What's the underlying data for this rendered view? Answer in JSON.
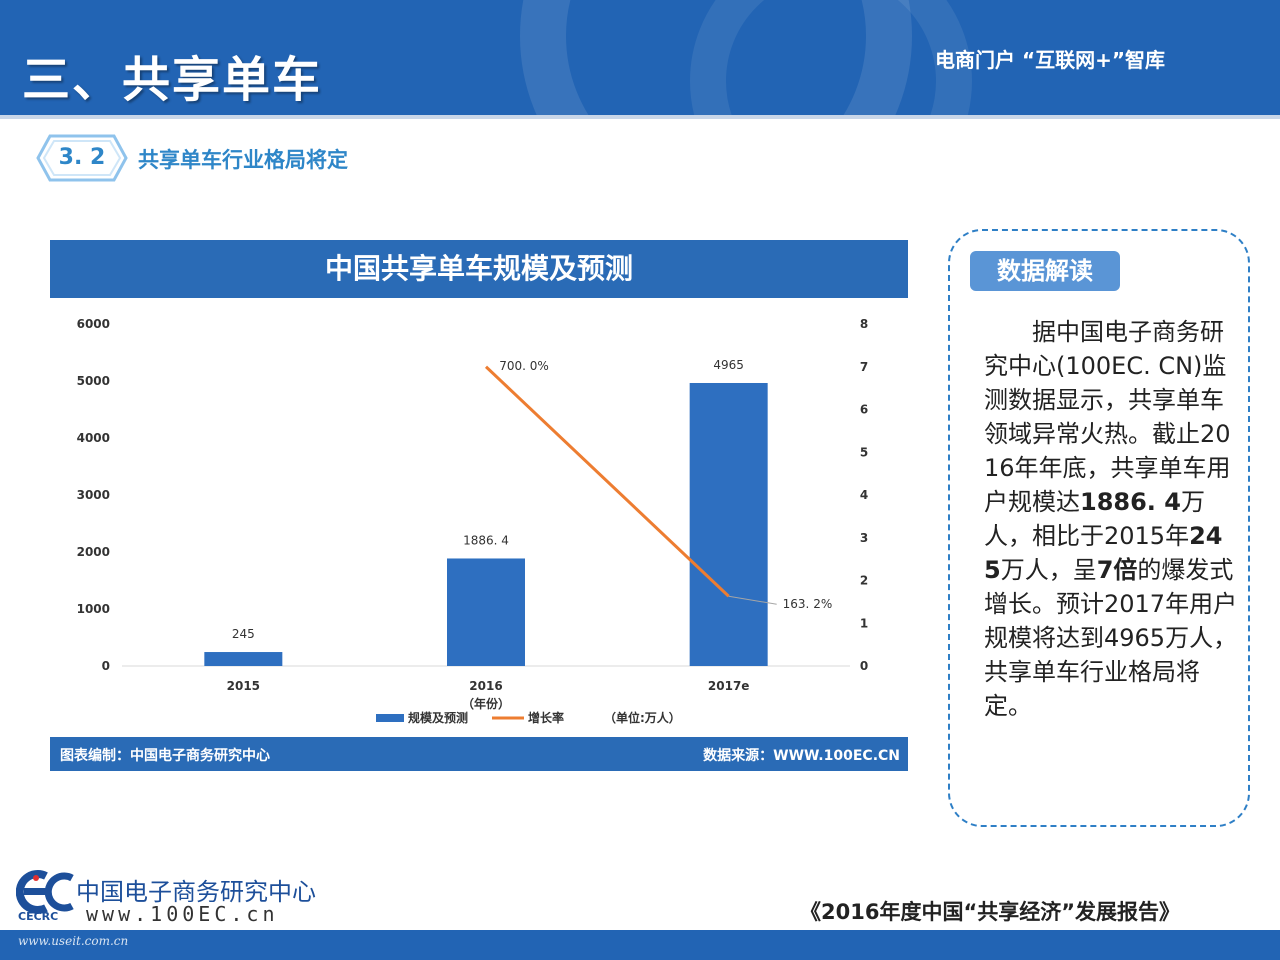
{
  "header": {
    "title": "三、共享单车",
    "portal": "电商门户 “互联网+”智库"
  },
  "section": {
    "number": "3. 2",
    "label": "共享单车行业格局将定"
  },
  "chart_panel": {
    "title": "中国共享单车规模及预测",
    "footer_left": "图表编制：中国电子商务研究中心",
    "footer_right": "数据来源：WWW.100EC.CN",
    "legend_unit": "（单位:万人）"
  },
  "chart_data": {
    "type": "bar",
    "title": "中国共享单车规模及预测",
    "xlabel": "（年份）",
    "categories": [
      "2015",
      "2016",
      "2017e"
    ],
    "series": [
      {
        "name": "规模及预测",
        "type": "bar",
        "axis": "left",
        "values": [
          245,
          1886.4,
          4965
        ],
        "labels": [
          "245",
          "1886. 4",
          "4965"
        ],
        "color": "#2e6fc0"
      },
      {
        "name": "增长率",
        "type": "line",
        "axis": "right",
        "values": [
          null,
          7.0,
          1.632
        ],
        "labels": [
          "",
          "700. 0%",
          "163. 2%"
        ],
        "color": "#ed7d31"
      }
    ],
    "ylim_left": [
      0,
      6000
    ],
    "yticks_left": [
      "0",
      "1000",
      "2000",
      "3000",
      "4000",
      "5000",
      "6000"
    ],
    "ylim_right": [
      0,
      8
    ],
    "yticks_right": [
      "0",
      "1",
      "2",
      "3",
      "4",
      "5",
      "6",
      "7",
      "8"
    ],
    "grid": false,
    "legend_position": "bottom"
  },
  "readout": {
    "badge": "数据解读",
    "paragraph": [
      {
        "text": "　　据中国电子商务研究中心(100EC. CN)监测数据显示，共享单车领域异常火热。截止2016年年底，共享单车用户规模达",
        "bold": false
      },
      {
        "text": "1886. 4",
        "bold": true
      },
      {
        "text": "万人，相比于2015年",
        "bold": false
      },
      {
        "text": "245",
        "bold": true
      },
      {
        "text": "万人，呈",
        "bold": false
      },
      {
        "text": "7倍",
        "bold": true
      },
      {
        "text": "的爆发式增长。预计2017年用户规模将达到4965万人，共享单车行业格局将定。",
        "bold": false
      }
    ]
  },
  "footer": {
    "org_name": "中国电子商务研究中心",
    "org_url": "www.100EC.cn",
    "org_abbr": "CECRC",
    "report_title": "《2016年度中国“共享经济”发展报告》",
    "watermark": "www.useit.com.cn"
  },
  "colors": {
    "brand_blue": "#2264b4",
    "bar_blue": "#2e6fc0",
    "line_orange": "#ed7d31",
    "accent_cyan": "#2e86c8"
  }
}
